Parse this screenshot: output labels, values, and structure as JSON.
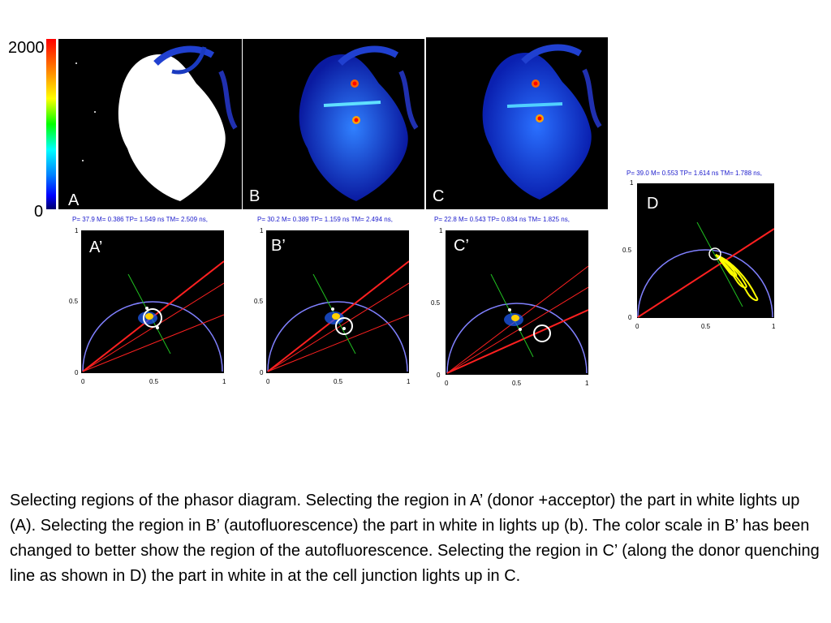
{
  "color_scale": {
    "max_label": "2000",
    "min_label": "0"
  },
  "images": [
    {
      "label": "A"
    },
    {
      "label": "B"
    },
    {
      "label": "C"
    }
  ],
  "phasors": [
    {
      "label": "A’",
      "stats": "P=  37.9 M= 0.386 TP= 1.549 ns TM= 2.509 ns,",
      "ticks_y": [
        "1",
        "0.5",
        "0"
      ],
      "ticks_x": [
        "0",
        "0.5",
        "1"
      ]
    },
    {
      "label": "B’",
      "stats": "P=  30.2 M= 0.389 TP= 1.159 ns TM= 2.494 ns,",
      "ticks_y": [
        "1",
        "0.5",
        "0"
      ],
      "ticks_x": [
        "0",
        "0.5",
        "1"
      ]
    },
    {
      "label": "C’",
      "stats": "P=  22.8 M= 0.543 TP= 0.834 ns TM= 1.825 ns,",
      "ticks_y": [
        "1",
        "0.5",
        "0"
      ],
      "ticks_x": [
        "0",
        "0.5",
        "1"
      ]
    },
    {
      "label": "D",
      "stats": "P=  39.0 M= 0.553 TP= 1.614 ns TM= 1.788 ns,",
      "ticks_y": [
        "1",
        "0.5",
        "0"
      ],
      "ticks_x": [
        "0",
        "0.5",
        "1"
      ]
    }
  ],
  "caption": "Selecting regions of the phasor diagram.  Selecting the region in A’ (donor +acceptor) the part in white lights up (A).  Selecting the region in B’ (autofluorescence) the part in white in lights up (b).  The color scale in B’ has been changed to better show the region of the autofluorescence.  Selecting the region in C’ (along the donor quenching line as shown in D) the part in white in at the cell junction lights up in C.",
  "colors": {
    "semicircle": "#8080ff",
    "red_line": "#ff2020",
    "green_line": "#20c020",
    "yellow_trajectory": "#ffff00",
    "stats_text": "#1a1acc"
  }
}
